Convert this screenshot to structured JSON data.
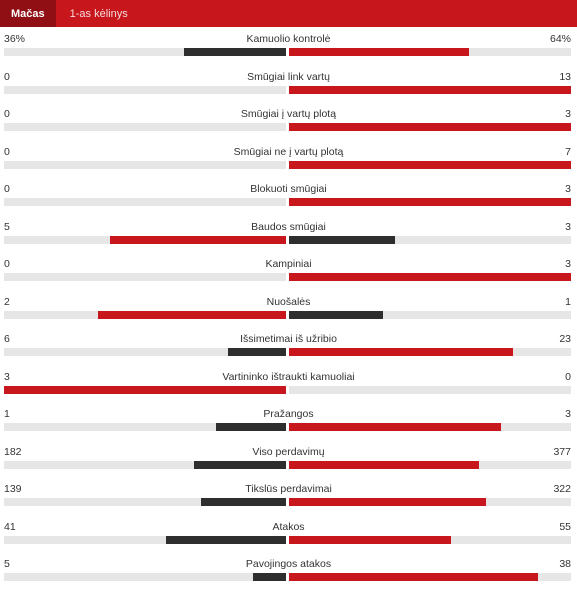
{
  "tabs": [
    {
      "label": "Mačas",
      "active": true
    },
    {
      "label": "1-as kėlinys",
      "active": false
    }
  ],
  "colors": {
    "leader": "#c8161d",
    "trailer": "#2e2e2e",
    "track": "#e6e6e6"
  },
  "stats": [
    {
      "label": "Kamuolio kontrolė",
      "home": "36%",
      "away": "64%",
      "home_v": 36,
      "away_v": 64
    },
    {
      "label": "Smūgiai link vartų",
      "home": "0",
      "away": "13",
      "home_v": 0,
      "away_v": 13
    },
    {
      "label": "Smūgiai į vartų plotą",
      "home": "0",
      "away": "3",
      "home_v": 0,
      "away_v": 3
    },
    {
      "label": "Smūgiai ne į vartų plotą",
      "home": "0",
      "away": "7",
      "home_v": 0,
      "away_v": 7
    },
    {
      "label": "Blokuoti smūgiai",
      "home": "0",
      "away": "3",
      "home_v": 0,
      "away_v": 3
    },
    {
      "label": "Baudos smūgiai",
      "home": "5",
      "away": "3",
      "home_v": 5,
      "away_v": 3
    },
    {
      "label": "Kampiniai",
      "home": "0",
      "away": "3",
      "home_v": 0,
      "away_v": 3
    },
    {
      "label": "Nuošalės",
      "home": "2",
      "away": "1",
      "home_v": 2,
      "away_v": 1
    },
    {
      "label": "Išsimetimai iš užribio",
      "home": "6",
      "away": "23",
      "home_v": 6,
      "away_v": 23
    },
    {
      "label": "Vartininko ištraukti kamuoliai",
      "home": "3",
      "away": "0",
      "home_v": 3,
      "away_v": 0
    },
    {
      "label": "Pražangos",
      "home": "1",
      "away": "3",
      "home_v": 1,
      "away_v": 3
    },
    {
      "label": "Viso perdavimų",
      "home": "182",
      "away": "377",
      "home_v": 182,
      "away_v": 377
    },
    {
      "label": "Tikslūs perdavimai",
      "home": "139",
      "away": "322",
      "home_v": 139,
      "away_v": 322
    },
    {
      "label": "Atakos",
      "home": "41",
      "away": "55",
      "home_v": 41,
      "away_v": 55
    },
    {
      "label": "Pavojingos atakos",
      "home": "5",
      "away": "38",
      "home_v": 5,
      "away_v": 38
    }
  ]
}
